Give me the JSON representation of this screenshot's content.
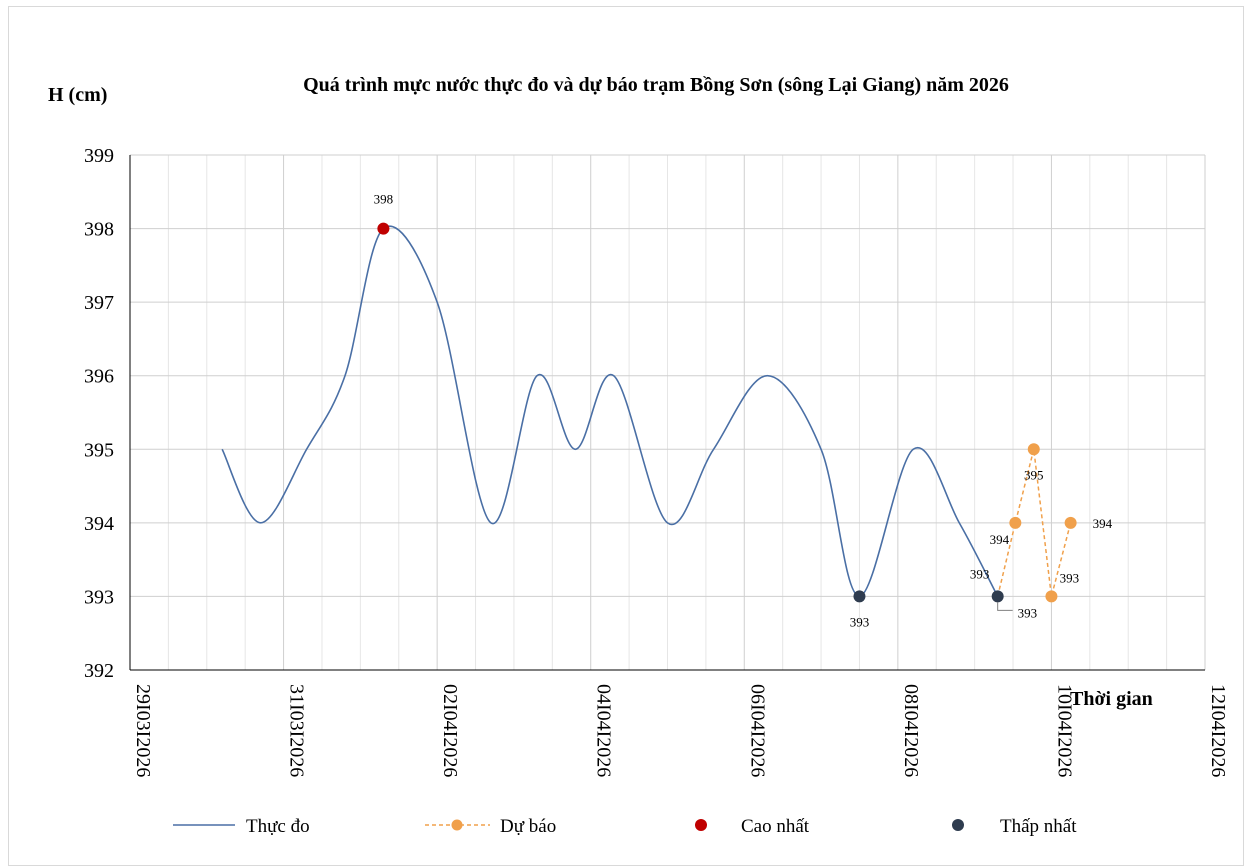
{
  "chart_data": {
    "type": "line",
    "title": "Quá trình mực nước thực đo và dự báo trạm Bồng Sơn (sông Lại Giang) năm 2026",
    "ylabel": "H (cm)",
    "xlabel": "Thời gian",
    "ylim": [
      392,
      399
    ],
    "yticks": [
      "392",
      "393",
      "394",
      "395",
      "396",
      "397",
      "398",
      "399"
    ],
    "xlim_days": [
      0,
      14
    ],
    "xticks": [
      "29/03/2026",
      "31/03/2026",
      "02/04/2026",
      "04/04/2026",
      "06/04/2026",
      "08/04/2026",
      "10/04/2026",
      "12/04/2026"
    ],
    "xticks_display": [
      "29I03I2026",
      "31I03I2026",
      "02I04I2026",
      "04I04I2026",
      "06I04I2026",
      "08I04I2026",
      "10I04I2026",
      "12I04I2026"
    ],
    "grid": true,
    "legend_position": "bottom",
    "series": [
      {
        "name": "Thực đo",
        "color": "#4a6fa5",
        "style": "smooth-line",
        "x": [
          1.2,
          1.7,
          2.3,
          2.8,
          3.3,
          4.0,
          4.7,
          5.3,
          5.8,
          6.3,
          7.0,
          7.6,
          8.3,
          9.0,
          9.5,
          10.2,
          10.8,
          11.3
        ],
        "y": [
          395,
          394,
          395,
          396,
          398,
          397,
          394,
          396,
          395,
          396,
          394,
          395,
          396,
          395,
          393,
          395,
          394,
          393
        ]
      },
      {
        "name": "Dự báo",
        "color": "#f0a04b",
        "style": "dashed-markers",
        "x": [
          11.3,
          11.53,
          11.77,
          12.0,
          12.25
        ],
        "y": [
          393,
          394,
          395,
          393,
          394
        ]
      },
      {
        "name": "Cao nhất",
        "color": "#c00000",
        "style": "marker",
        "x": [
          3.3
        ],
        "y": [
          398
        ]
      },
      {
        "name": "Thấp nhất",
        "color": "#2f3c4f",
        "style": "marker",
        "x": [
          9.5,
          11.3
        ],
        "y": [
          393,
          393
        ]
      }
    ],
    "data_labels": [
      {
        "text": "398",
        "x": 3.3,
        "y": 398,
        "pos": "above"
      },
      {
        "text": "393",
        "x": 9.5,
        "y": 393,
        "pos": "below"
      },
      {
        "text": "393",
        "x": 11.3,
        "y": 393,
        "pos": "above-left"
      },
      {
        "text": "393",
        "x": 11.3,
        "y": 393,
        "pos": "leader-right"
      },
      {
        "text": "394",
        "x": 11.53,
        "y": 394,
        "pos": "below-left"
      },
      {
        "text": "395",
        "x": 11.77,
        "y": 395,
        "pos": "below"
      },
      {
        "text": "393",
        "x": 12.0,
        "y": 393,
        "pos": "above-right"
      },
      {
        "text": "394",
        "x": 12.25,
        "y": 394,
        "pos": "right"
      }
    ]
  }
}
